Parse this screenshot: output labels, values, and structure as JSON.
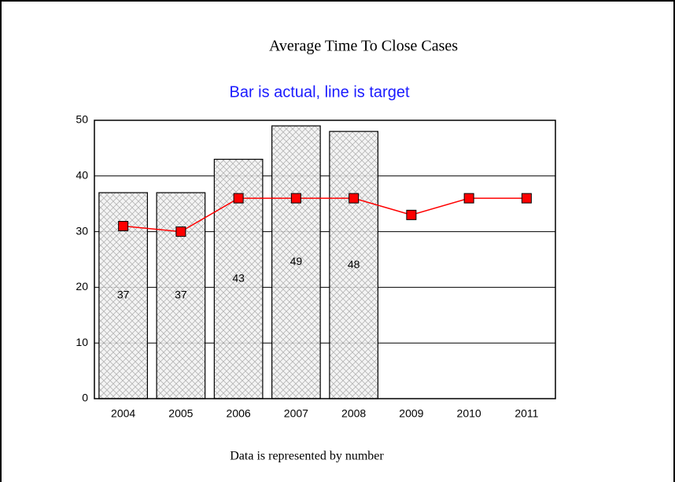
{
  "chart_data": {
    "type": "bar",
    "title": "Average Time To Close Cases",
    "subtitle": "Bar is actual, line is target",
    "note": "Data is represented by number",
    "categories": [
      "2004",
      "2005",
      "2006",
      "2007",
      "2008",
      "2009",
      "2010",
      "2011"
    ],
    "series": [
      {
        "type": "bar",
        "color": "#b0b0b0",
        "values": [
          37,
          37,
          43,
          49,
          48,
          null,
          null,
          null
        ]
      },
      {
        "type": "line",
        "color": "#ff0000",
        "values": [
          31,
          30,
          36,
          36,
          36,
          33,
          36,
          36
        ]
      }
    ],
    "ylim": [
      0,
      50
    ],
    "yticks": [
      0,
      10,
      20,
      30,
      40,
      50
    ],
    "grid": true
  }
}
